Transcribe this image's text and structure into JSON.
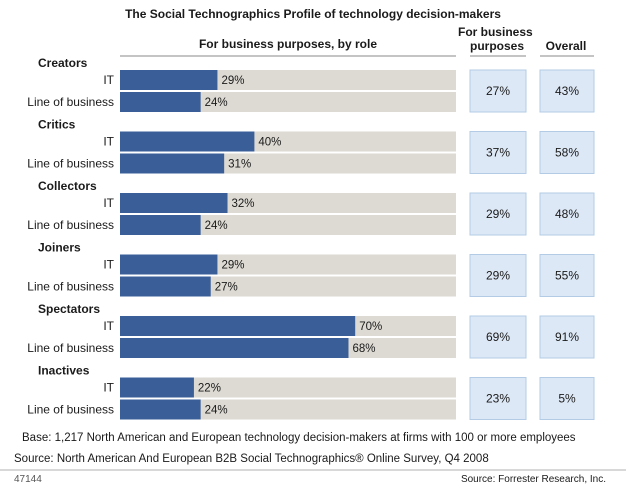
{
  "chart_data": {
    "type": "bar",
    "title": "The Social Technographics Profile of technology decision-makers",
    "column_headers": {
      "by_role": "For business purposes, by role",
      "business": "For business purposes",
      "overall": "Overall"
    },
    "row_labels": [
      "IT",
      "Line of business"
    ],
    "xlim": [
      0,
      100
    ],
    "grid": false,
    "legend": "none",
    "groups": [
      {
        "name": "Creators",
        "it": 29,
        "lob": 24,
        "business": "27%",
        "overall": "43%"
      },
      {
        "name": "Critics",
        "it": 40,
        "lob": 31,
        "business": "37%",
        "overall": "58%"
      },
      {
        "name": "Collectors",
        "it": 32,
        "lob": 24,
        "business": "29%",
        "overall": "48%"
      },
      {
        "name": "Joiners",
        "it": 29,
        "lob": 27,
        "business": "29%",
        "overall": "55%"
      },
      {
        "name": "Spectators",
        "it": 70,
        "lob": 68,
        "business": "69%",
        "overall": "91%"
      },
      {
        "name": "Inactives",
        "it": 22,
        "lob": 24,
        "business": "23%",
        "overall": "5%"
      }
    ]
  },
  "colors": {
    "bar": "#3a5f98",
    "track": "#dddad3",
    "box": "#dde8f6",
    "box_border": "#b4cbe6",
    "rule": "#8a8a8a"
  },
  "footer": {
    "base": "Base: 1,217 North American and European technology decision-makers at firms with 100 or more employees",
    "source": "Source: North American And European B2B Social Technographics® Online Survey, Q4 2008",
    "figure_id": "47144",
    "credit": "Source: Forrester Research, Inc."
  }
}
